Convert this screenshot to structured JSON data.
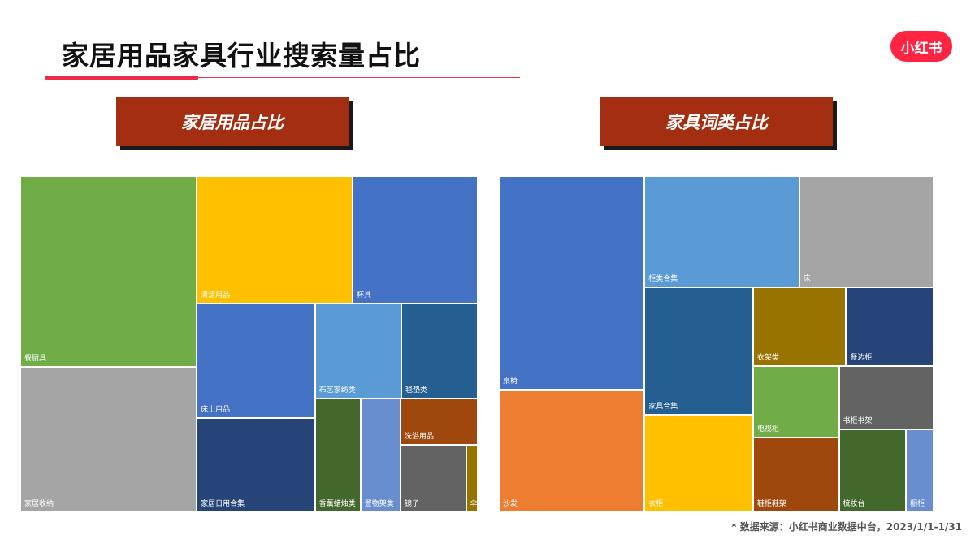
{
  "header": {
    "title": "家居用品家具行业搜索量占比",
    "logo_text": "小红书"
  },
  "banners": {
    "left": "家居用品占比",
    "right": "家具词类占比"
  },
  "footer": {
    "source": "* 数据来源：小红书商业数据中台，2023/1/1-1/31"
  },
  "chart_data": [
    {
      "type": "treemap",
      "title": "家居用品占比",
      "items": [
        {
          "name": "餐厨具",
          "value": 21.5,
          "color": "#70ad47"
        },
        {
          "name": "家居收纳",
          "value": 16.3,
          "color": "#a5a5a5"
        },
        {
          "name": "清洁用品",
          "value": 12.7,
          "color": "#ffc000"
        },
        {
          "name": "杯具",
          "value": 10.2,
          "color": "#4472c4"
        },
        {
          "name": "床上用品",
          "value": 8.6,
          "color": "#4472c4"
        },
        {
          "name": "家居日用合集",
          "value": 7.1,
          "color": "#264478"
        },
        {
          "name": "布艺家纺类",
          "value": 5.2,
          "color": "#5b9bd5"
        },
        {
          "name": "毯垫类",
          "value": 4.6,
          "color": "#255e91"
        },
        {
          "name": "香薰蜡烛类",
          "value": 3.3,
          "color": "#43682b"
        },
        {
          "name": "置物架类",
          "value": 2.9,
          "color": "#698ed0"
        },
        {
          "name": "洗浴用品",
          "value": 2.3,
          "color": "#9e480e"
        },
        {
          "name": "镜子",
          "value": 2.8,
          "color": "#636363"
        },
        {
          "name": "伞",
          "value": 0.5,
          "color": "#997300"
        }
      ]
    },
    {
      "type": "treemap",
      "title": "家具词类占比",
      "items": [
        {
          "name": "桌椅",
          "value": 21.8,
          "color": "#4472c4"
        },
        {
          "name": "沙发",
          "value": 12.5,
          "color": "#ed7d31"
        },
        {
          "name": "柜类合集",
          "value": 12.1,
          "color": "#5b9bd5"
        },
        {
          "name": "床",
          "value": 10.5,
          "color": "#a5a5a5"
        },
        {
          "name": "家具合集",
          "value": 9.7,
          "color": "#255e91"
        },
        {
          "name": "衣柜",
          "value": 7.4,
          "color": "#ffc000"
        },
        {
          "name": "衣架类",
          "value": 5.1,
          "color": "#997300"
        },
        {
          "name": "餐边柜",
          "value": 4.8,
          "color": "#264478"
        },
        {
          "name": "电视柜",
          "value": 4.3,
          "color": "#70ad47"
        },
        {
          "name": "书柜书架",
          "value": 4.2,
          "color": "#636363"
        },
        {
          "name": "鞋柜鞋架",
          "value": 4.5,
          "color": "#9e480e"
        },
        {
          "name": "梳妆台",
          "value": 3.9,
          "color": "#43682b"
        },
        {
          "name": "橱柜",
          "value": 1.6,
          "color": "#698ed0"
        }
      ]
    }
  ]
}
